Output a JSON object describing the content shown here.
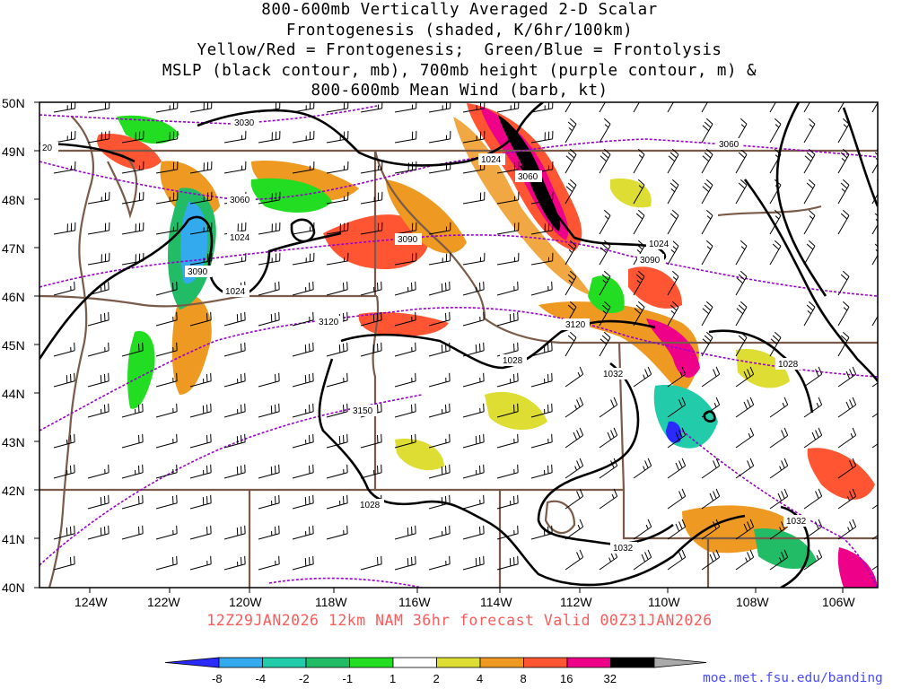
{
  "title_lines": [
    "800-600mb Vertically Averaged 2-D Scalar",
    "Frontogenesis (shaded, K/6hr/100km)",
    "Yellow/Red = Frontogenesis;  Green/Blue = Frontolysis",
    "MSLP (black contour, mb), 700mb height (purple contour, m) &",
    "800-600mb Mean Wind (barb, kt)"
  ],
  "valid_line": "12Z29JAN2026 12km NAM 36hr forecast Valid 00Z31JAN2026",
  "url": "moe.met.fsu.edu/banding",
  "lat_labels": [
    "50N",
    "49N",
    "48N",
    "47N",
    "46N",
    "45N",
    "44N",
    "43N",
    "42N",
    "41N",
    "40N"
  ],
  "lon_labels": [
    "124W",
    "122W",
    "120W",
    "118W",
    "116W",
    "114W",
    "112W",
    "110W",
    "108W",
    "106W"
  ],
  "colorbar": {
    "labels": [
      "-8",
      "-4",
      "-2",
      "-1",
      "1",
      "2",
      "4",
      "8",
      "16",
      "32"
    ],
    "colors": [
      "#2a2aff",
      "#33aaee",
      "#22ccaa",
      "#22bb66",
      "#22dd22",
      "#ffffff",
      "#dddd33",
      "#ee9922",
      "#ff5533",
      "#ee0088",
      "#000000",
      "#aaaaaa"
    ]
  },
  "mslp_labels": [
    "1024",
    "1024",
    "1024",
    "1024",
    "1028",
    "1028",
    "1028",
    "1032",
    "1032",
    "1032"
  ],
  "height_labels": [
    "3030",
    "3060",
    "3060",
    "3060",
    "3090",
    "3090",
    "3090",
    "3120",
    "3120",
    "3150",
    "20"
  ]
}
